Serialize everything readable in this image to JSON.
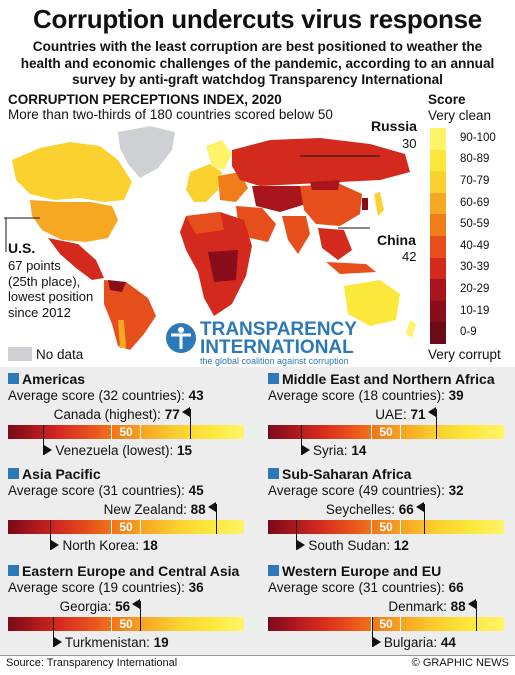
{
  "header": {
    "title": "Corruption undercuts virus response",
    "subtitle": "Countries with the least corruption are best positioned to weather the health and economic challenges of the pandemic, according to an annual survey by anti-graft watchdog Transparency International"
  },
  "map": {
    "title": "CORRUPTION PERCEPTIONS INDEX, 2020",
    "subtitle": "More than two-thirds of 180 countries scored below 50",
    "callouts": {
      "russia": {
        "name": "Russia",
        "value": "30"
      },
      "china": {
        "name": "China",
        "value": "42"
      },
      "us": {
        "name": "U.S.",
        "lines": [
          "67 points",
          "(25th place),",
          "lowest position",
          "since 2012"
        ]
      }
    },
    "no_data": "No data",
    "logo": {
      "line1": "TRANSPARENCY",
      "line2": "INTERNATIONAL",
      "tagline": "the global coalition against corruption"
    }
  },
  "scale": {
    "title": "Score",
    "top": "Very clean",
    "bottom": "Very corrupt",
    "bands": [
      "90-100",
      "80-89",
      "70-79",
      "60-69",
      "50-59",
      "40-49",
      "30-39",
      "20-29",
      "10-19",
      "0-9"
    ],
    "colors": [
      "#fff36a",
      "#fce83b",
      "#fbd12f",
      "#f7a822",
      "#f07c1a",
      "#e64e1b",
      "#d42a1e",
      "#a8151d",
      "#8a0d1b",
      "#6a0a16"
    ]
  },
  "regions": [
    {
      "name": "Americas",
      "avg_label": "Average score (32 countries):",
      "avg": "43",
      "high_name": "Canada (highest):",
      "high": "77",
      "low_name": "Venezuela (lowest):",
      "low": "15",
      "high_value": 77,
      "low_value": 15,
      "avg_value": 43
    },
    {
      "name": "Middle East and Northern Africa",
      "avg_label": "Average score (18 countries):",
      "avg": "39",
      "high_name": "UAE:",
      "high": "71",
      "low_name": "Syria:",
      "low": "14",
      "high_value": 71,
      "low_value": 14,
      "avg_value": 39
    },
    {
      "name": "Asia Pacific",
      "avg_label": "Average score (31 countries):",
      "avg": "45",
      "high_name": "New Zealand:",
      "high": "88",
      "low_name": "North Korea:",
      "low": "18",
      "high_value": 88,
      "low_value": 18,
      "avg_value": 45
    },
    {
      "name": "Sub-Saharan Africa",
      "avg_label": "Average score (49 countries):",
      "avg": "32",
      "high_name": "Seychelles:",
      "high": "66",
      "low_name": "South Sudan:",
      "low": "12",
      "high_value": 66,
      "low_value": 12,
      "avg_value": 32
    },
    {
      "name": "Eastern Europe and Central Asia",
      "avg_label": "Average score (19 countries):",
      "avg": "36",
      "high_name": "Georgia:",
      "high": "56",
      "low_name": "Turkmenistan:",
      "low": "19",
      "high_value": 56,
      "low_value": 19,
      "avg_value": 36
    },
    {
      "name": "Western Europe and EU",
      "avg_label": "Average score (31 countries):",
      "avg": "66",
      "high_name": "Denmark:",
      "high": "88",
      "low_name": "Bulgaria:",
      "low": "44",
      "high_value": 88,
      "low_value": 44,
      "avg_value": 66
    }
  ],
  "bar_mark": "50",
  "footer": {
    "source": "Source: Transparency International",
    "credit": "© GRAPHIC NEWS"
  }
}
